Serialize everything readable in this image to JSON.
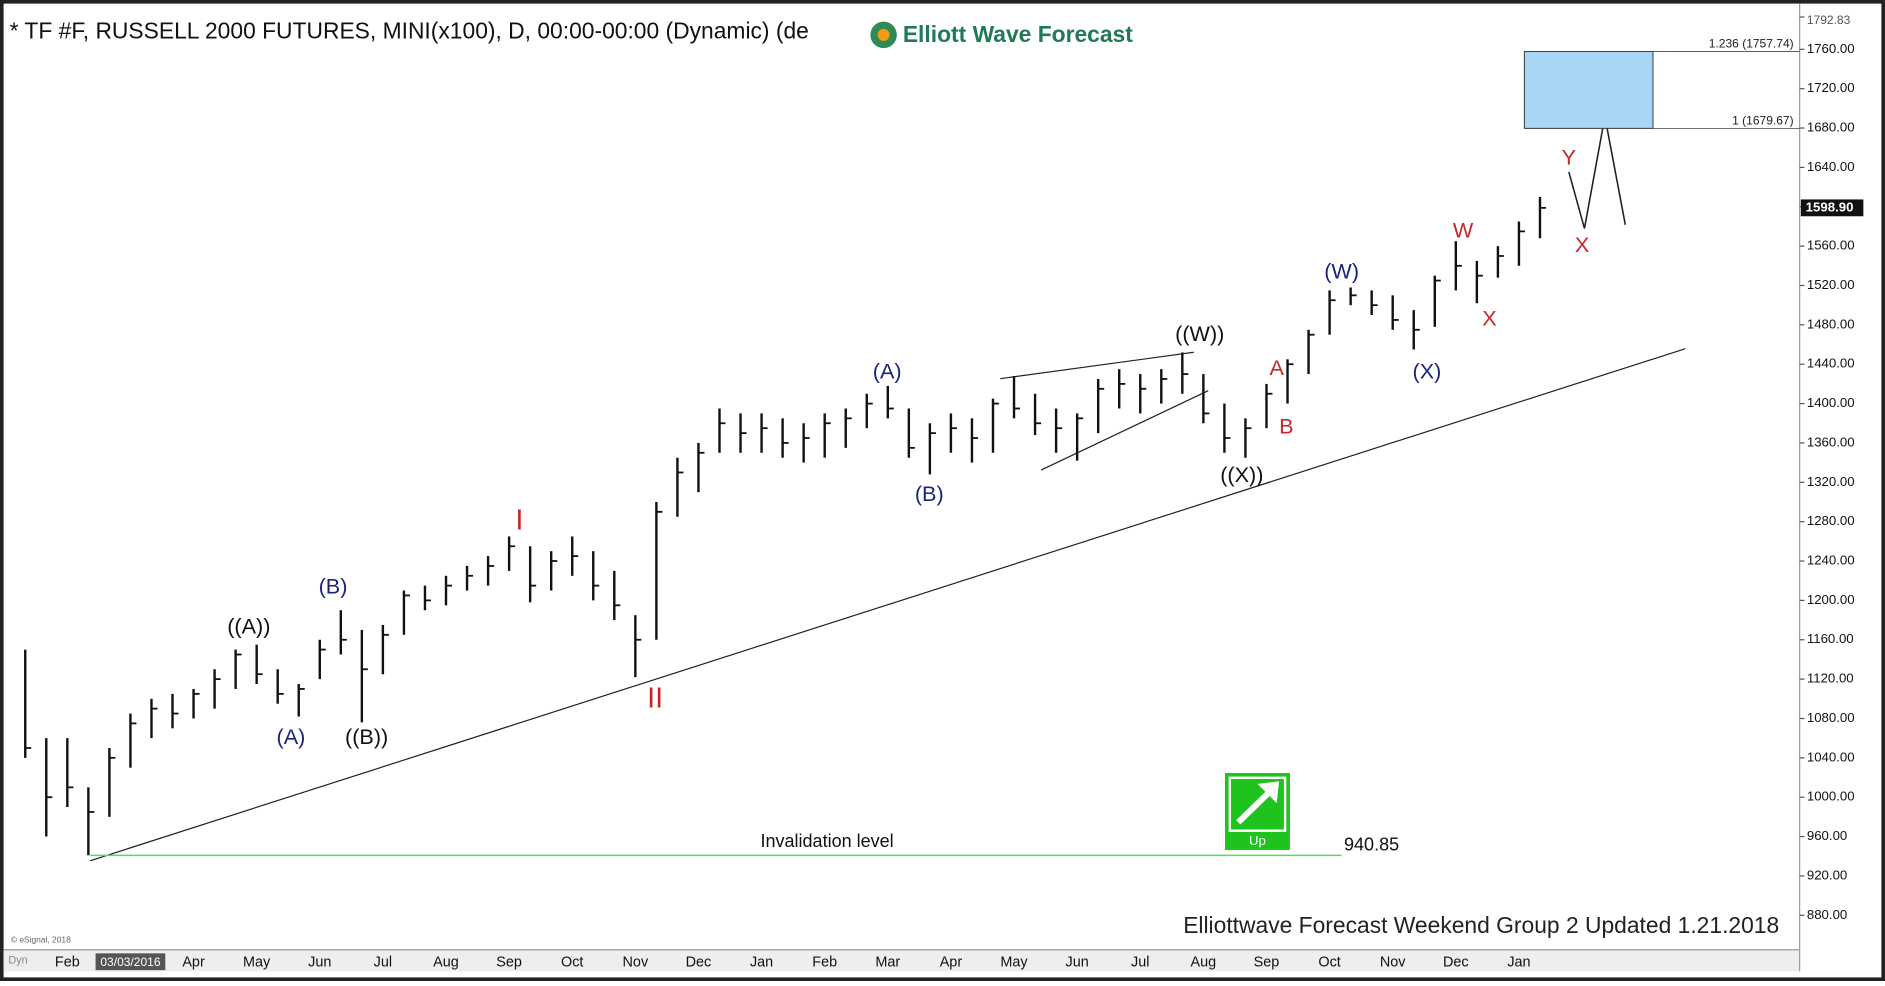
{
  "chart_data": {
    "type": "hlc",
    "title": "* TF #F, RUSSELL 2000 FUTURES, MINI(x100), D, 00:00-00:00 (Dynamic) (de",
    "logo": "Elliott Wave Forecast",
    "footer": "Elliottwave Forecast Weekend Group 2 Updated 1.21.2018",
    "copyright": "© eSignal, 2018",
    "corner": "Dyn",
    "icon_label": "Up",
    "color": "#111111",
    "categories": [
      null,
      null,
      "Feb",
      null,
      null,
      "03/03/2016",
      null,
      null,
      "Apr",
      null,
      null,
      "May",
      null,
      null,
      "Jun",
      null,
      null,
      "Jul",
      null,
      null,
      "Aug",
      null,
      null,
      "Sep",
      null,
      null,
      "Oct",
      null,
      null,
      "Nov",
      null,
      null,
      "Dec",
      null,
      null,
      "Jan",
      null,
      null,
      "Feb",
      null,
      null,
      "Mar",
      null,
      null,
      "Apr",
      null,
      null,
      "May",
      null,
      null,
      "Jun",
      null,
      null,
      "Jul",
      null,
      null,
      "Aug",
      null,
      null,
      "Sep",
      null,
      null,
      "Oct",
      null,
      null,
      "Nov",
      null,
      null,
      "Dec",
      null,
      null,
      "Jan",
      null
    ],
    "high": [
      1150,
      1060,
      1060,
      1010,
      1050,
      1085,
      1100,
      1105,
      1110,
      1130,
      1150,
      1155,
      1130,
      1115,
      1160,
      1190,
      1170,
      1175,
      1210,
      1215,
      1225,
      1235,
      1245,
      1265,
      1255,
      1250,
      1265,
      1250,
      1230,
      1185,
      1300,
      1345,
      1360,
      1395,
      1390,
      1390,
      1385,
      1380,
      1390,
      1395,
      1410,
      1418,
      1395,
      1380,
      1390,
      1385,
      1405,
      1428,
      1410,
      1395,
      1390,
      1425,
      1435,
      1430,
      1435,
      1452,
      1430,
      1400,
      1385,
      1420,
      1445,
      1475,
      1515,
      1518,
      1515,
      1510,
      1495,
      1530,
      1565,
      1545,
      1560,
      1585,
      1610
    ],
    "low": [
      1040,
      960,
      990,
      941,
      980,
      1030,
      1060,
      1070,
      1080,
      1090,
      1110,
      1115,
      1095,
      1082,
      1120,
      1145,
      1076,
      1125,
      1165,
      1190,
      1195,
      1210,
      1215,
      1230,
      1198,
      1210,
      1225,
      1200,
      1180,
      1122,
      1160,
      1285,
      1310,
      1350,
      1350,
      1350,
      1345,
      1340,
      1345,
      1355,
      1375,
      1385,
      1345,
      1328,
      1350,
      1340,
      1350,
      1385,
      1368,
      1350,
      1342,
      1370,
      1395,
      1390,
      1400,
      1410,
      1380,
      1350,
      1345,
      1375,
      1400,
      1430,
      1470,
      1500,
      1490,
      1475,
      1455,
      1478,
      1515,
      1502,
      1528,
      1540,
      1568
    ],
    "close": [
      1050,
      1000,
      1010,
      985,
      1040,
      1075,
      1090,
      1085,
      1105,
      1120,
      1145,
      1125,
      1105,
      1110,
      1150,
      1160,
      1130,
      1165,
      1205,
      1200,
      1215,
      1225,
      1235,
      1255,
      1215,
      1240,
      1245,
      1215,
      1195,
      1160,
      1290,
      1330,
      1350,
      1380,
      1370,
      1375,
      1360,
      1365,
      1380,
      1385,
      1400,
      1395,
      1355,
      1370,
      1375,
      1365,
      1400,
      1395,
      1380,
      1375,
      1385,
      1415,
      1420,
      1415,
      1425,
      1430,
      1390,
      1365,
      1375,
      1410,
      1440,
      1470,
      1505,
      1510,
      1500,
      1485,
      1475,
      1525,
      1540,
      1530,
      1550,
      1575,
      1598.9
    ],
    "ylim": [
      845,
      1792.83
    ],
    "scale_top": {
      "value": 1792.83,
      "label": "1792.83"
    },
    "last": {
      "value": 1598.9,
      "label": "1598.90"
    },
    "yticks": [
      {
        "value": 880,
        "label": "880.00"
      },
      {
        "value": 920,
        "label": "920.00"
      },
      {
        "value": 960,
        "label": "960.00"
      },
      {
        "value": 1000,
        "label": "1000.00"
      },
      {
        "value": 1040,
        "label": "1040.00"
      },
      {
        "value": 1080,
        "label": "1080.00"
      },
      {
        "value": 1120,
        "label": "1120.00"
      },
      {
        "value": 1160,
        "label": "1160.00"
      },
      {
        "value": 1200,
        "label": "1200.00"
      },
      {
        "value": 1240,
        "label": "1240.00"
      },
      {
        "value": 1280,
        "label": "1280.00"
      },
      {
        "value": 1320,
        "label": "1320.00"
      },
      {
        "value": 1360,
        "label": "1360.00"
      },
      {
        "value": 1400,
        "label": "1400.00"
      },
      {
        "value": 1440,
        "label": "1440.00"
      },
      {
        "value": 1480,
        "label": "1480.00"
      },
      {
        "value": 1520,
        "label": "1520.00"
      },
      {
        "value": 1560,
        "label": "1560.00"
      },
      {
        "value": 1600,
        "label": "1600.00"
      },
      {
        "value": 1640,
        "label": "1640.00"
      },
      {
        "value": 1680,
        "label": "1680.00"
      },
      {
        "value": 1720,
        "label": "1720.00"
      },
      {
        "value": 1760,
        "label": "1760.00"
      }
    ],
    "fib_levels": [
      {
        "value": 1757.74,
        "label": "1.236 (1757.74)"
      },
      {
        "value": 1679.67,
        "label": "1 (1679.67)"
      }
    ],
    "invalidation": {
      "value": 940.85,
      "text": "Invalidation level"
    },
    "annotations": [
      "((A))",
      "(A)",
      "(B)",
      "((B))",
      "I",
      "II",
      "(A)",
      "(B)",
      "((W))",
      "((X))",
      "A",
      "B",
      "(W)",
      "(X)",
      "W",
      "X",
      "Y",
      "X"
    ]
  }
}
